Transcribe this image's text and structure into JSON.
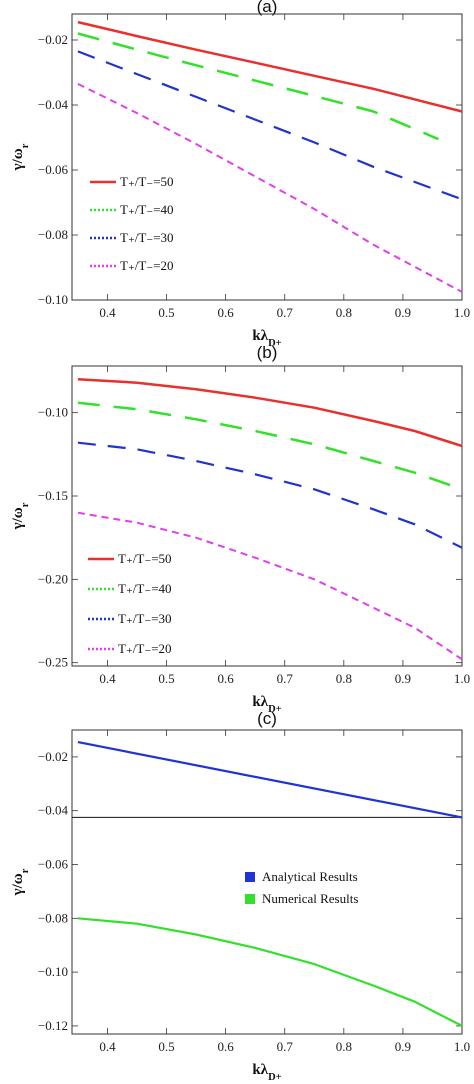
{
  "chart_data": [
    {
      "panel_label": "(a)",
      "type": "line",
      "xlabel": "kλ_{D+}",
      "ylabel": "γ/ω_r",
      "xlim": [
        0.34,
        1.0
      ],
      "ylim": [
        -0.1,
        -0.012
      ],
      "xticks": [
        0.4,
        0.5,
        0.6,
        0.7,
        0.8,
        0.9,
        1.0
      ],
      "xtick_labels": [
        "0.4",
        "0.5",
        "0.6",
        "0.7",
        "0.8",
        "0.9",
        "1.0"
      ],
      "yticks": [
        -0.02,
        -0.04,
        -0.06,
        -0.08,
        -0.1
      ],
      "ytick_labels": [
        "−0.02",
        "−0.04",
        "−0.06",
        "−0.08",
        "−0.10"
      ],
      "legend_position": "lower-left",
      "series": [
        {
          "name": "T₊/T₋=50",
          "color": "#e8302e",
          "dash": "",
          "width": 2.5,
          "x": [
            0.35,
            0.45,
            0.55,
            0.65,
            0.75,
            0.85,
            1.0
          ],
          "values": [
            -0.0145,
            -0.0188,
            -0.023,
            -0.027,
            -0.031,
            -0.035,
            -0.042
          ]
        },
        {
          "name": "T₊/T₋=40",
          "color": "#33e02a",
          "dash": "22,14",
          "width": 2.5,
          "x": [
            0.35,
            0.45,
            0.55,
            0.65,
            0.75,
            0.85,
            0.96
          ],
          "values": [
            -0.018,
            -0.023,
            -0.0278,
            -0.0325,
            -0.0372,
            -0.042,
            -0.0505
          ]
        },
        {
          "name": "T₊/T₋=30",
          "color": "#2233cc",
          "dash": "18,12",
          "width": 2.2,
          "x": [
            0.35,
            0.45,
            0.55,
            0.65,
            0.75,
            0.85,
            1.0
          ],
          "values": [
            -0.0235,
            -0.0305,
            -0.0375,
            -0.0445,
            -0.0515,
            -0.059,
            -0.069
          ]
        },
        {
          "name": "T₊/T₋=20",
          "color": "#e040e8",
          "dash": "7,5",
          "width": 2.0,
          "x": [
            0.35,
            0.45,
            0.55,
            0.65,
            0.75,
            0.85,
            1.0
          ],
          "values": [
            -0.0335,
            -0.0425,
            -0.052,
            -0.062,
            -0.072,
            -0.083,
            -0.0975
          ]
        }
      ]
    },
    {
      "panel_label": "(b)",
      "type": "line",
      "xlabel": "kλ_{D+}",
      "ylabel": "γ/ω_r",
      "xlim": [
        0.34,
        1.0
      ],
      "ylim": [
        -0.252,
        -0.072
      ],
      "xticks": [
        0.4,
        0.5,
        0.6,
        0.7,
        0.8,
        0.9,
        1.0
      ],
      "xtick_labels": [
        "0.4",
        "0.5",
        "0.6",
        "0.7",
        "0.8",
        "0.9",
        "1.0"
      ],
      "yticks": [
        -0.1,
        -0.15,
        -0.2,
        -0.25
      ],
      "ytick_labels": [
        "−0.10",
        "−0.15",
        "−0.20",
        "−0.25"
      ],
      "legend_position": "lower-left",
      "series": [
        {
          "name": "T₊/T₋=50",
          "color": "#e8302e",
          "dash": "",
          "width": 2.5,
          "x": [
            0.35,
            0.45,
            0.55,
            0.65,
            0.75,
            0.85,
            0.92,
            1.0
          ],
          "values": [
            -0.08,
            -0.082,
            -0.086,
            -0.091,
            -0.097,
            -0.105,
            -0.111,
            -0.12
          ]
        },
        {
          "name": "T₊/T₋=40",
          "color": "#33e02a",
          "dash": "22,14",
          "width": 2.5,
          "x": [
            0.35,
            0.45,
            0.55,
            0.65,
            0.75,
            0.85,
            0.92,
            1.0
          ],
          "values": [
            -0.094,
            -0.098,
            -0.104,
            -0.111,
            -0.119,
            -0.129,
            -0.136,
            -0.146
          ]
        },
        {
          "name": "T₊/T₋=30",
          "color": "#2233cc",
          "dash": "18,12",
          "width": 2.2,
          "x": [
            0.35,
            0.45,
            0.55,
            0.65,
            0.75,
            0.85,
            0.92,
            1.0
          ],
          "values": [
            -0.118,
            -0.122,
            -0.129,
            -0.137,
            -0.146,
            -0.158,
            -0.167,
            -0.181
          ]
        },
        {
          "name": "T₊/T₋=20",
          "color": "#e040e8",
          "dash": "7,5",
          "width": 2.0,
          "x": [
            0.35,
            0.45,
            0.55,
            0.65,
            0.75,
            0.85,
            0.92,
            1.0
          ],
          "values": [
            -0.16,
            -0.166,
            -0.175,
            -0.187,
            -0.2,
            -0.217,
            -0.229,
            -0.248
          ]
        }
      ]
    },
    {
      "panel_label": "(c)",
      "type": "line",
      "xlabel": "kλ_{D+}",
      "ylabel": "γ/ω_r",
      "xlim": [
        0.34,
        1.0
      ],
      "ylim": [
        -0.123,
        -0.01
      ],
      "xticks": [
        0.4,
        0.5,
        0.6,
        0.7,
        0.8,
        0.9,
        1.0
      ],
      "xtick_labels": [
        "0.4",
        "0.5",
        "0.6",
        "0.7",
        "0.8",
        "0.9",
        "1.0"
      ],
      "yticks": [
        -0.02,
        -0.04,
        -0.06,
        -0.08,
        -0.1,
        -0.12
      ],
      "ytick_labels": [
        "−0.02",
        "−0.04",
        "−0.06",
        "−0.08",
        "−0.10",
        "−0.12"
      ],
      "legend_position": "center-right",
      "hline": -0.0425,
      "series": [
        {
          "name": "Analytical Results",
          "color": "#2233d6",
          "dash": "",
          "width": 2.2,
          "x": [
            0.35,
            1.0
          ],
          "values": [
            -0.0145,
            -0.0425
          ]
        },
        {
          "name": "Numerical Results",
          "color": "#33e02a",
          "dash": "",
          "width": 2.2,
          "x": [
            0.35,
            0.45,
            0.55,
            0.65,
            0.75,
            0.85,
            0.92,
            1.0
          ],
          "values": [
            -0.08,
            -0.082,
            -0.086,
            -0.091,
            -0.097,
            -0.105,
            -0.111,
            -0.12
          ]
        }
      ]
    }
  ]
}
